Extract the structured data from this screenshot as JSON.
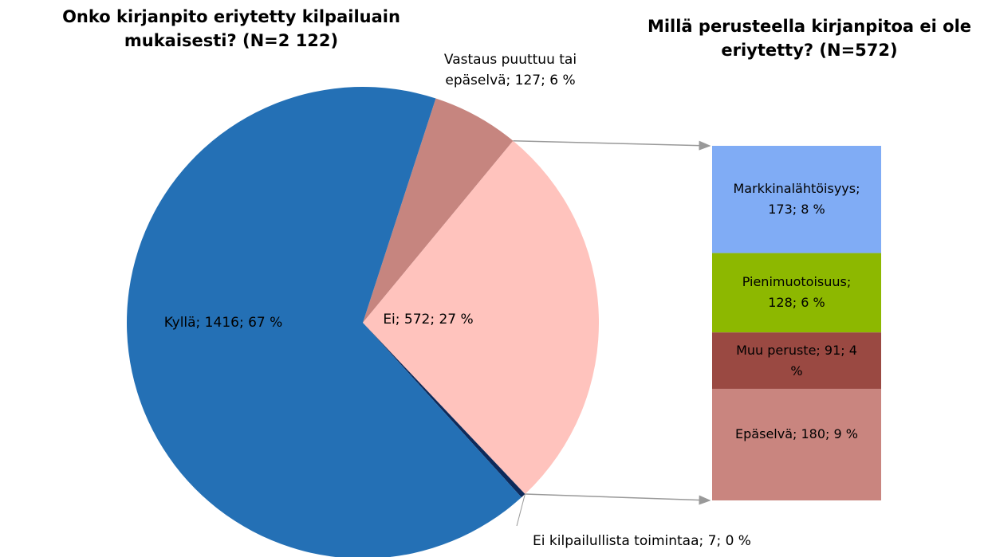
{
  "chart_data": [
    {
      "type": "pie",
      "title": "Onko kirjanpito eriytetty kilpailuain mukaisesti? (N=2 122)",
      "values": [
        127,
        572,
        7,
        1416
      ],
      "value_labels": [
        "Vastaus puuttuu tai epäselvä; 127; 6 %",
        "Ei; 572; 27 %",
        "Ei kilpailullista toimintaa; 7; 0 %",
        "Kyllä; 1416; 67 %"
      ],
      "colors": [
        "#c6857f",
        "#ffc3bd",
        "#0e2a5a",
        "#2470b5"
      ]
    },
    {
      "type": "stacked-bar",
      "title": "Millä perusteella kirjanpitoa ei ole eriytetty? (N=572)",
      "values": [
        173,
        128,
        91,
        180
      ],
      "value_labels": [
        "Markkinalähtöisyys; 173; 8 %",
        "Pienimuotoisuus; 128; 6 %",
        "Muu peruste; 91; 4 %",
        "Epäselvä; 180; 9 %"
      ],
      "colors": [
        "#80acf5",
        "#8db800",
        "#9a4942",
        "#c9857f"
      ]
    }
  ]
}
